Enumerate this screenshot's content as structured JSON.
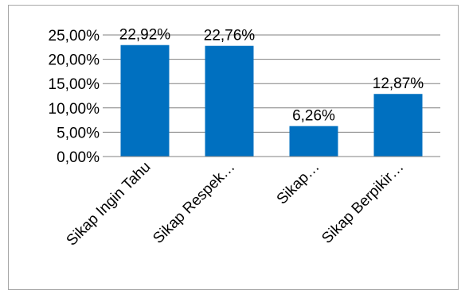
{
  "chart_data": {
    "type": "bar",
    "categories": [
      "Sikap Ingin Tahu",
      "Sikap Respek…",
      "Sikap…",
      "Sikap Berpikir…"
    ],
    "values": [
      22.92,
      22.76,
      6.26,
      12.87
    ],
    "data_labels": [
      "22,92%",
      "22,76%",
      "6,26%",
      "12,87%"
    ],
    "y_ticks": [
      {
        "value": 0,
        "label": "0,00%"
      },
      {
        "value": 5,
        "label": "5,00%"
      },
      {
        "value": 10,
        "label": "10,00%"
      },
      {
        "value": 15,
        "label": "15,00%"
      },
      {
        "value": 20,
        "label": "20,00%"
      },
      {
        "value": 25,
        "label": "25,00%"
      }
    ],
    "ylim": [
      0,
      25
    ],
    "grid": true,
    "legend": "none",
    "colors": {
      "bar": "#0070C0",
      "grid": "#808080",
      "axis": "#808080"
    }
  }
}
